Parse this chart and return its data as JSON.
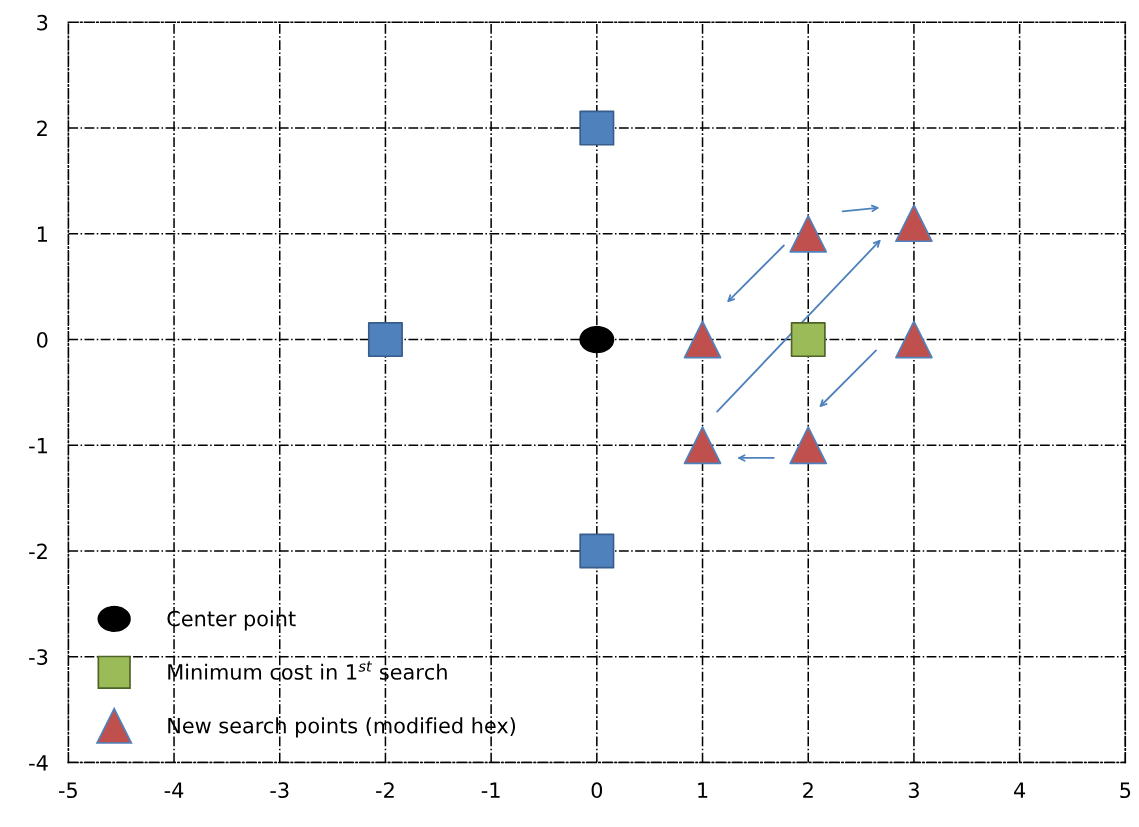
{
  "chart_data": {
    "type": "scatter",
    "xlim": [
      -5,
      5
    ],
    "ylim": [
      -4,
      3
    ],
    "xticks": [
      -5,
      -4,
      -3,
      -2,
      -1,
      0,
      1,
      2,
      3,
      4,
      5
    ],
    "yticks": [
      -4,
      -3,
      -2,
      -1,
      0,
      1,
      2,
      3
    ],
    "grid": true,
    "legend": "bottom left",
    "series": [
      {
        "color": "#4f81bd",
        "marker": "square",
        "x": [
          0,
          -2,
          0
        ],
        "values": [
          2,
          0,
          -2
        ]
      },
      {
        "name": "Center point",
        "color": "#000000",
        "marker": "circle",
        "x": [
          0
        ],
        "values": [
          0
        ]
      },
      {
        "name": "Minimum cost in 1$^{st}$ search",
        "color": "#9bbb59",
        "marker": "square",
        "x": [
          2
        ],
        "values": [
          0
        ]
      },
      {
        "name": "New search points (modified hex)",
        "color": "#c0504d",
        "marker": "triangle",
        "x": [
          2,
          3,
          1,
          3,
          1,
          2
        ],
        "values": [
          1,
          1.1,
          0,
          0,
          -1,
          -1
        ]
      }
    ]
  }
}
